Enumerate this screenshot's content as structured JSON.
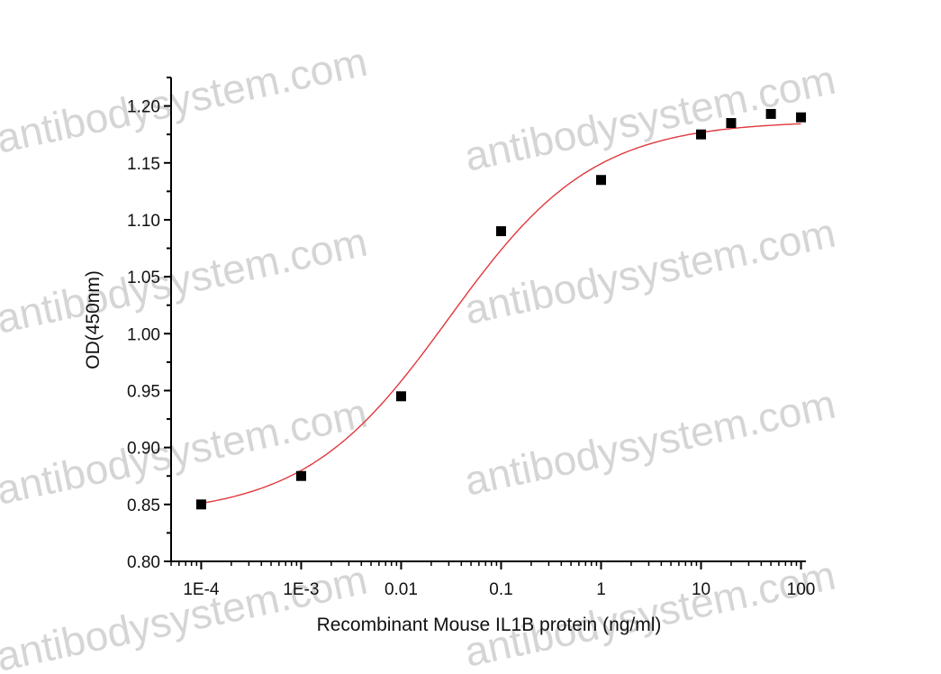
{
  "watermark": "antibodysystem.com",
  "chart_data": {
    "type": "scatter",
    "title": "",
    "xlabel": "Recombinant Mouse IL1B protein (ng/ml)",
    "ylabel": "OD(450nm)",
    "xscale": "log",
    "xlim": [
      5e-05,
      112
    ],
    "ylim": [
      0.8,
      1.225
    ],
    "xticks": [
      0.0001,
      0.001,
      0.01,
      0.1,
      1,
      10,
      100
    ],
    "xtick_labels": [
      "1E-4",
      "1E-3",
      "0.01",
      "0.1",
      "1",
      "10",
      "100"
    ],
    "yticks": [
      0.8,
      0.85,
      0.9,
      0.95,
      1.0,
      1.05,
      1.1,
      1.15,
      1.2
    ],
    "ytick_labels": [
      "0.80",
      "0.85",
      "0.90",
      "0.95",
      "1.00",
      "1.05",
      "1.10",
      "1.15",
      "1.20"
    ],
    "grid": false,
    "points": {
      "x": [
        0.0001,
        0.001,
        0.01,
        0.1,
        1,
        10,
        20,
        50,
        100
      ],
      "y": [
        0.85,
        0.875,
        0.945,
        1.09,
        1.135,
        1.175,
        1.185,
        1.193,
        1.19
      ],
      "color": "#000000",
      "marker": "square"
    },
    "fit": {
      "model": "4PL",
      "bottom": 0.84,
      "top": 1.187,
      "ec50": 0.03,
      "hill": 0.6,
      "color": "#e0393e"
    }
  }
}
